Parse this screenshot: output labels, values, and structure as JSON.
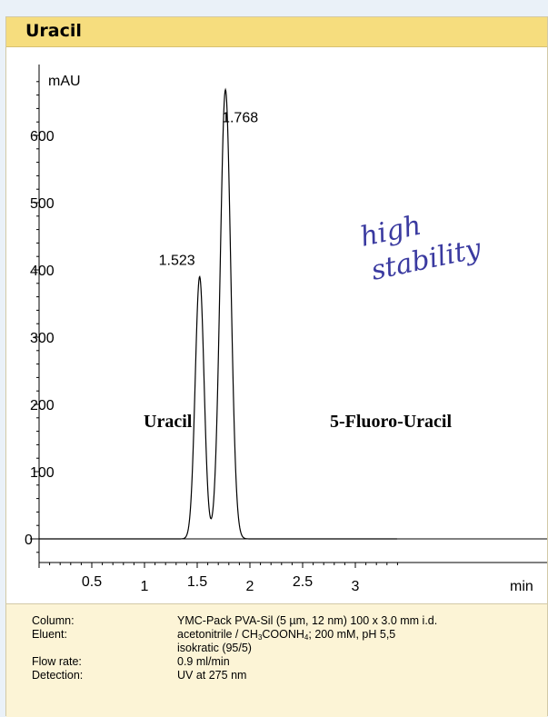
{
  "header": {
    "title": "Uracil"
  },
  "annotation": {
    "handwriting_line1": "high",
    "handwriting_line2": "stability",
    "handwriting_color": "#3a3aa0"
  },
  "chart_data": {
    "type": "line",
    "xlabel": "min",
    "ylabel": "mAU",
    "xlim": [
      0,
      3.4
    ],
    "ylim": [
      -10,
      690
    ],
    "x_ticks": [
      {
        "value": 0.5,
        "label": "0.5"
      },
      {
        "value": 1,
        "label": "1"
      },
      {
        "value": 1.5,
        "label": "1.5"
      },
      {
        "value": 2,
        "label": "2"
      },
      {
        "value": 2.5,
        "label": "2.5"
      },
      {
        "value": 3,
        "label": "3"
      }
    ],
    "y_ticks": [
      {
        "value": 0,
        "label": "0"
      },
      {
        "value": 100,
        "label": "100"
      },
      {
        "value": 200,
        "label": "200"
      },
      {
        "value": 300,
        "label": "300"
      },
      {
        "value": 400,
        "label": "400"
      },
      {
        "value": 500,
        "label": "500"
      },
      {
        "value": 600,
        "label": "600"
      }
    ],
    "peaks": [
      {
        "retention_time": 1.523,
        "label": "1.523",
        "height": 390,
        "compound": "Uracil"
      },
      {
        "retention_time": 1.768,
        "label": "1.768",
        "height": 668,
        "compound": "5-Fluoro-Uracil"
      }
    ],
    "series_color": "#000000",
    "grid": false
  },
  "conditions": {
    "column_label": "Column:",
    "column_value": "YMC-Pack PVA-Sil (5 µm, 12 nm) 100 x 3.0 mm i.d.",
    "eluent_label": "Eluent:",
    "eluent_pre": "acetonitrile / CH",
    "eluent_sub1": "3",
    "eluent_mid": "COONH",
    "eluent_sub2": "4",
    "eluent_post": "; 200 mM, pH 5,5",
    "eluent_line2": "isokratic (95/5)",
    "flow_label": "Flow rate:",
    "flow_value": "0.9 ml/min",
    "detection_label": "Detection:",
    "detection_value": "UV at 275 nm"
  }
}
